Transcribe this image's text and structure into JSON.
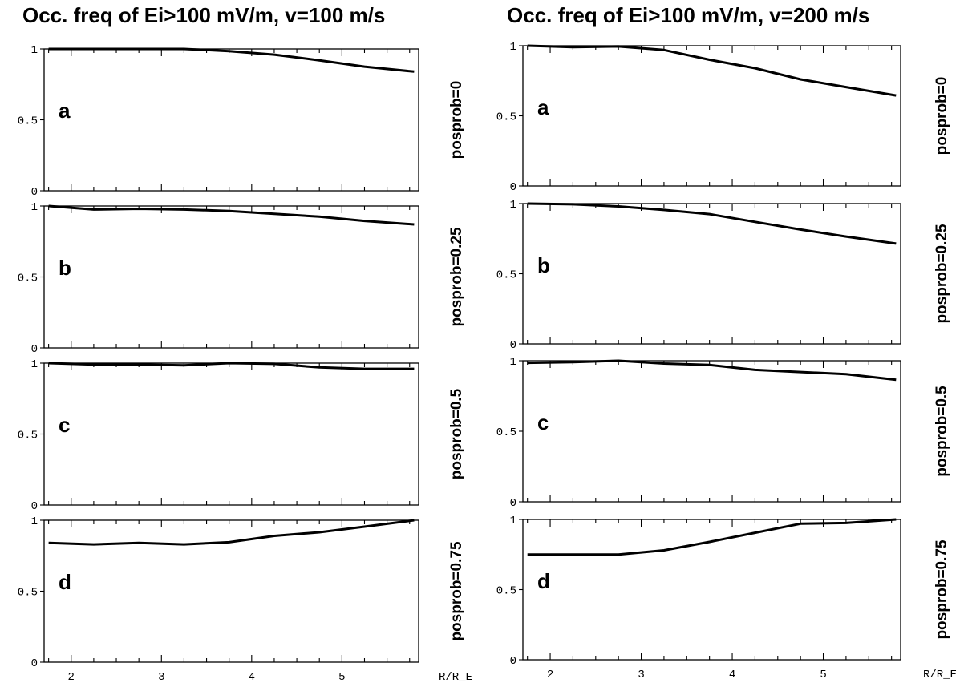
{
  "titles": {
    "left": "Occ. freq of Ei>100 mV/m, v=100 m/s",
    "right": "Occ. freq of Ei>100 mV/m, v=200 m/s"
  },
  "xlabel": "R/R_E",
  "chart_data": [
    {
      "type": "line",
      "title": "Occ. freq of Ei>100 mV/m, v=100 m/s",
      "xlabel": "R/R_E",
      "x": [
        1.75,
        2.25,
        2.75,
        3.25,
        3.75,
        4.25,
        4.75,
        5.25,
        5.8
      ],
      "xlim": [
        1.7,
        5.85
      ],
      "ylim": [
        0,
        1
      ],
      "xticks": [
        "2",
        "3",
        "4",
        "5"
      ],
      "yticks": [
        "0",
        "0.5",
        "1"
      ],
      "panels": [
        {
          "letter": "a",
          "side_label": "posprob=0",
          "values": [
            1.0,
            1.0,
            1.0,
            1.0,
            0.985,
            0.96,
            0.92,
            0.875,
            0.84
          ]
        },
        {
          "letter": "b",
          "side_label": "posprob=0.25",
          "values": [
            1.0,
            0.975,
            0.98,
            0.975,
            0.965,
            0.945,
            0.925,
            0.895,
            0.87
          ]
        },
        {
          "letter": "c",
          "side_label": "posprob=0.5",
          "values": [
            1.0,
            0.99,
            0.99,
            0.985,
            1.0,
            0.995,
            0.97,
            0.96,
            0.96
          ]
        },
        {
          "letter": "d",
          "side_label": "posprob=0.75",
          "values": [
            0.84,
            0.83,
            0.84,
            0.83,
            0.845,
            0.89,
            0.915,
            0.955,
            1.0
          ]
        }
      ]
    },
    {
      "type": "line",
      "title": "Occ. freq of Ei>100 mV/m, v=200 m/s",
      "xlabel": "R/R_E",
      "x": [
        1.75,
        2.25,
        2.75,
        3.25,
        3.75,
        4.25,
        4.75,
        5.25,
        5.8
      ],
      "xlim": [
        1.7,
        5.85
      ],
      "ylim": [
        0,
        1
      ],
      "xticks": [
        "2",
        "3",
        "4",
        "5"
      ],
      "yticks": [
        "0",
        "0.5",
        "1"
      ],
      "panels": [
        {
          "letter": "a",
          "side_label": "posprob=0",
          "values": [
            1.0,
            0.99,
            0.995,
            0.97,
            0.9,
            0.84,
            0.76,
            0.705,
            0.645
          ]
        },
        {
          "letter": "b",
          "side_label": "posprob=0.25",
          "values": [
            1.0,
            0.995,
            0.98,
            0.955,
            0.925,
            0.87,
            0.815,
            0.765,
            0.715
          ]
        },
        {
          "letter": "c",
          "side_label": "posprob=0.5",
          "values": [
            0.985,
            0.99,
            1.0,
            0.98,
            0.97,
            0.935,
            0.92,
            0.905,
            0.865
          ]
        },
        {
          "letter": "d",
          "side_label": "posprob=0.75",
          "values": [
            0.75,
            0.75,
            0.75,
            0.78,
            0.84,
            0.905,
            0.97,
            0.975,
            1.0
          ]
        }
      ]
    }
  ]
}
